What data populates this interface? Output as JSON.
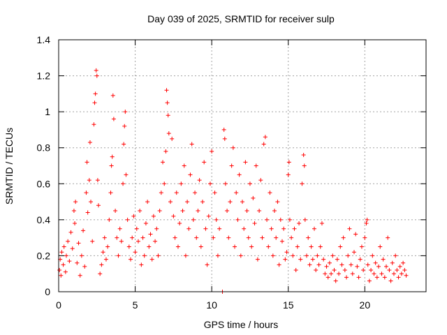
{
  "chart_data": {
    "type": "scatter",
    "title": "Day 039 of 2025, SRMTID for receiver sulp",
    "xlabel": "GPS time / hours",
    "ylabel": "SRMTID / TECUs",
    "xlim": [
      0,
      24
    ],
    "ylim": [
      0,
      1.4
    ],
    "xticks": [
      0,
      5,
      10,
      15,
      20
    ],
    "xtick_labels": [
      "0",
      "5",
      "10",
      "15",
      "20"
    ],
    "yticks": [
      0,
      0.2,
      0.4,
      0.6,
      0.8,
      1.0,
      1.2,
      1.4
    ],
    "ytick_labels": [
      "0",
      "0.2",
      "0.4",
      "0.6",
      "0.8",
      "1",
      "1.2",
      "1.4"
    ],
    "grid": true,
    "marker": "+",
    "color": "#ff0000",
    "series": [
      {
        "name": "SRMTID",
        "points": [
          [
            0.05,
            0.12
          ],
          [
            0.1,
            0.18
          ],
          [
            0.15,
            0.09
          ],
          [
            0.2,
            0.22
          ],
          [
            0.3,
            0.15
          ],
          [
            0.35,
            0.25
          ],
          [
            0.45,
            0.11
          ],
          [
            0.5,
            0.2
          ],
          [
            0.6,
            0.28
          ],
          [
            0.7,
            0.17
          ],
          [
            0.8,
            0.33
          ],
          [
            0.9,
            0.24
          ],
          [
            1.0,
            0.45
          ],
          [
            1.05,
            0.38
          ],
          [
            1.1,
            0.5
          ],
          [
            1.2,
            0.16
          ],
          [
            1.3,
            0.27
          ],
          [
            1.4,
            0.09
          ],
          [
            1.5,
            0.2
          ],
          [
            1.6,
            0.34
          ],
          [
            1.7,
            0.14
          ],
          [
            1.8,
            0.55
          ],
          [
            1.85,
            0.72
          ],
          [
            1.9,
            0.44
          ],
          [
            2.0,
            0.62
          ],
          [
            2.05,
            0.83
          ],
          [
            2.1,
            0.5
          ],
          [
            2.2,
            0.28
          ],
          [
            2.3,
            0.93
          ],
          [
            2.35,
            1.05
          ],
          [
            2.4,
            1.1
          ],
          [
            2.45,
            1.23
          ],
          [
            2.5,
            1.2
          ],
          [
            2.55,
            0.62
          ],
          [
            2.6,
            0.48
          ],
          [
            2.7,
            0.1
          ],
          [
            2.8,
            0.15
          ],
          [
            2.9,
            0.22
          ],
          [
            3.0,
            0.3
          ],
          [
            3.1,
            0.18
          ],
          [
            3.2,
            0.25
          ],
          [
            3.3,
            0.4
          ],
          [
            3.4,
            0.55
          ],
          [
            3.45,
            0.7
          ],
          [
            3.5,
            0.75
          ],
          [
            3.55,
            1.09
          ],
          [
            3.6,
            0.96
          ],
          [
            3.7,
            0.45
          ],
          [
            3.8,
            0.3
          ],
          [
            3.9,
            0.2
          ],
          [
            4.0,
            0.35
          ],
          [
            4.1,
            0.28
          ],
          [
            4.2,
            0.6
          ],
          [
            4.25,
            0.82
          ],
          [
            4.3,
            0.92
          ],
          [
            4.35,
            1.0
          ],
          [
            4.4,
            0.65
          ],
          [
            4.5,
            0.4
          ],
          [
            4.6,
            0.25
          ],
          [
            4.7,
            0.18
          ],
          [
            4.8,
            0.3
          ],
          [
            4.9,
            0.42
          ],
          [
            5.0,
            0.22
          ],
          [
            5.1,
            0.35
          ],
          [
            5.2,
            0.28
          ],
          [
            5.3,
            0.45
          ],
          [
            5.4,
            0.15
          ],
          [
            5.5,
            0.3
          ],
          [
            5.6,
            0.2
          ],
          [
            5.7,
            0.38
          ],
          [
            5.8,
            0.5
          ],
          [
            5.9,
            0.25
          ],
          [
            6.0,
            0.32
          ],
          [
            6.1,
            0.18
          ],
          [
            6.2,
            0.42
          ],
          [
            6.3,
            0.28
          ],
          [
            6.4,
            0.35
          ],
          [
            6.5,
            0.2
          ],
          [
            6.6,
            0.45
          ],
          [
            6.7,
            0.55
          ],
          [
            6.8,
            0.72
          ],
          [
            6.9,
            0.6
          ],
          [
            7.0,
            0.78
          ],
          [
            7.05,
            1.12
          ],
          [
            7.1,
            1.05
          ],
          [
            7.15,
            0.98
          ],
          [
            7.2,
            0.88
          ],
          [
            7.3,
            0.5
          ],
          [
            7.4,
            0.85
          ],
          [
            7.5,
            0.42
          ],
          [
            7.6,
            0.3
          ],
          [
            7.7,
            0.55
          ],
          [
            7.8,
            0.25
          ],
          [
            7.9,
            0.38
          ],
          [
            8.0,
            0.6
          ],
          [
            8.1,
            0.45
          ],
          [
            8.2,
            0.7
          ],
          [
            8.3,
            0.2
          ],
          [
            8.4,
            0.5
          ],
          [
            8.5,
            0.35
          ],
          [
            8.6,
            0.65
          ],
          [
            8.7,
            0.82
          ],
          [
            8.8,
            0.4
          ],
          [
            8.9,
            0.55
          ],
          [
            9.0,
            0.3
          ],
          [
            9.1,
            0.45
          ],
          [
            9.2,
            0.62
          ],
          [
            9.3,
            0.25
          ],
          [
            9.4,
            0.5
          ],
          [
            9.5,
            0.72
          ],
          [
            9.6,
            0.35
          ],
          [
            9.7,
            0.15
          ],
          [
            9.8,
            0.42
          ],
          [
            9.9,
            0.6
          ],
          [
            10.0,
            0.78
          ],
          [
            10.1,
            0.3
          ],
          [
            10.2,
            0.55
          ],
          [
            10.3,
            0.4
          ],
          [
            10.4,
            0.2
          ],
          [
            10.5,
            0.35
          ],
          [
            10.7,
            0.0
          ],
          [
            10.8,
            0.9
          ],
          [
            10.85,
            0.85
          ],
          [
            10.9,
            0.6
          ],
          [
            11.0,
            0.45
          ],
          [
            11.1,
            0.3
          ],
          [
            11.2,
            0.5
          ],
          [
            11.3,
            0.7
          ],
          [
            11.4,
            0.8
          ],
          [
            11.5,
            0.25
          ],
          [
            11.6,
            0.55
          ],
          [
            11.7,
            0.4
          ],
          [
            11.8,
            0.65
          ],
          [
            11.9,
            0.2
          ],
          [
            12.0,
            0.5
          ],
          [
            12.1,
            0.35
          ],
          [
            12.2,
            0.72
          ],
          [
            12.3,
            0.45
          ],
          [
            12.4,
            0.3
          ],
          [
            12.5,
            0.6
          ],
          [
            12.6,
            0.25
          ],
          [
            12.7,
            0.52
          ],
          [
            12.8,
            0.38
          ],
          [
            12.9,
            0.7
          ],
          [
            13.0,
            0.18
          ],
          [
            13.1,
            0.45
          ],
          [
            13.2,
            0.62
          ],
          [
            13.3,
            0.3
          ],
          [
            13.4,
            0.82
          ],
          [
            13.5,
            0.86
          ],
          [
            13.6,
            0.4
          ],
          [
            13.7,
            0.25
          ],
          [
            13.8,
            0.55
          ],
          [
            13.9,
            0.35
          ],
          [
            14.0,
            0.2
          ],
          [
            14.1,
            0.45
          ],
          [
            14.2,
            0.3
          ],
          [
            14.3,
            0.5
          ],
          [
            14.4,
            0.15
          ],
          [
            14.5,
            0.4
          ],
          [
            14.6,
            0.28
          ],
          [
            14.7,
            0.35
          ],
          [
            14.8,
            0.18
          ],
          [
            14.9,
            0.22
          ],
          [
            15.0,
            0.65
          ],
          [
            15.05,
            0.72
          ],
          [
            15.1,
            0.4
          ],
          [
            15.2,
            0.3
          ],
          [
            15.3,
            0.2
          ],
          [
            15.4,
            0.35
          ],
          [
            15.5,
            0.12
          ],
          [
            15.6,
            0.25
          ],
          [
            15.7,
            0.38
          ],
          [
            15.8,
            0.18
          ],
          [
            15.9,
            0.6
          ],
          [
            16.0,
            0.76
          ],
          [
            16.05,
            0.7
          ],
          [
            16.1,
            0.4
          ],
          [
            16.2,
            0.2
          ],
          [
            16.3,
            0.3
          ],
          [
            16.4,
            0.15
          ],
          [
            16.5,
            0.25
          ],
          [
            16.6,
            0.18
          ],
          [
            16.7,
            0.35
          ],
          [
            16.8,
            0.12
          ],
          [
            16.9,
            0.2
          ],
          [
            17.0,
            0.15
          ],
          [
            17.1,
            0.25
          ],
          [
            17.2,
            0.38
          ],
          [
            17.3,
            0.18
          ],
          [
            17.4,
            0.1
          ],
          [
            17.5,
            0.14
          ],
          [
            17.6,
            0.08
          ],
          [
            17.7,
            0.16
          ],
          [
            17.8,
            0.1
          ],
          [
            17.9,
            0.2
          ],
          [
            18.0,
            0.12
          ],
          [
            18.1,
            0.06
          ],
          [
            18.2,
            0.18
          ],
          [
            18.3,
            0.1
          ],
          [
            18.4,
            0.25
          ],
          [
            18.5,
            0.15
          ],
          [
            18.6,
            0.3
          ],
          [
            18.7,
            0.12
          ],
          [
            18.8,
            0.08
          ],
          [
            18.9,
            0.2
          ],
          [
            19.0,
            0.35
          ],
          [
            19.1,
            0.15
          ],
          [
            19.2,
            0.1
          ],
          [
            19.3,
            0.22
          ],
          [
            19.4,
            0.32
          ],
          [
            19.5,
            0.14
          ],
          [
            19.6,
            0.08
          ],
          [
            19.7,
            0.18
          ],
          [
            19.8,
            0.25
          ],
          [
            19.9,
            0.12
          ],
          [
            20.0,
            0.3
          ],
          [
            20.1,
            0.38
          ],
          [
            20.15,
            0.4
          ],
          [
            20.2,
            0.15
          ],
          [
            20.3,
            0.06
          ],
          [
            20.4,
            0.12
          ],
          [
            20.5,
            0.2
          ],
          [
            20.6,
            0.1
          ],
          [
            20.7,
            0.16
          ],
          [
            20.8,
            0.08
          ],
          [
            20.9,
            0.14
          ],
          [
            21.0,
            0.25
          ],
          [
            21.1,
            0.1
          ],
          [
            21.2,
            0.18
          ],
          [
            21.3,
            0.08
          ],
          [
            21.4,
            0.14
          ],
          [
            21.5,
            0.3
          ],
          [
            21.6,
            0.12
          ],
          [
            21.7,
            0.06
          ],
          [
            21.8,
            0.16
          ],
          [
            21.9,
            0.1
          ],
          [
            22.0,
            0.2
          ],
          [
            22.1,
            0.12
          ],
          [
            22.2,
            0.08
          ],
          [
            22.3,
            0.14
          ],
          [
            22.4,
            0.1
          ],
          [
            22.5,
            0.16
          ],
          [
            22.6,
            0.12
          ],
          [
            22.7,
            0.09
          ]
        ]
      }
    ]
  }
}
